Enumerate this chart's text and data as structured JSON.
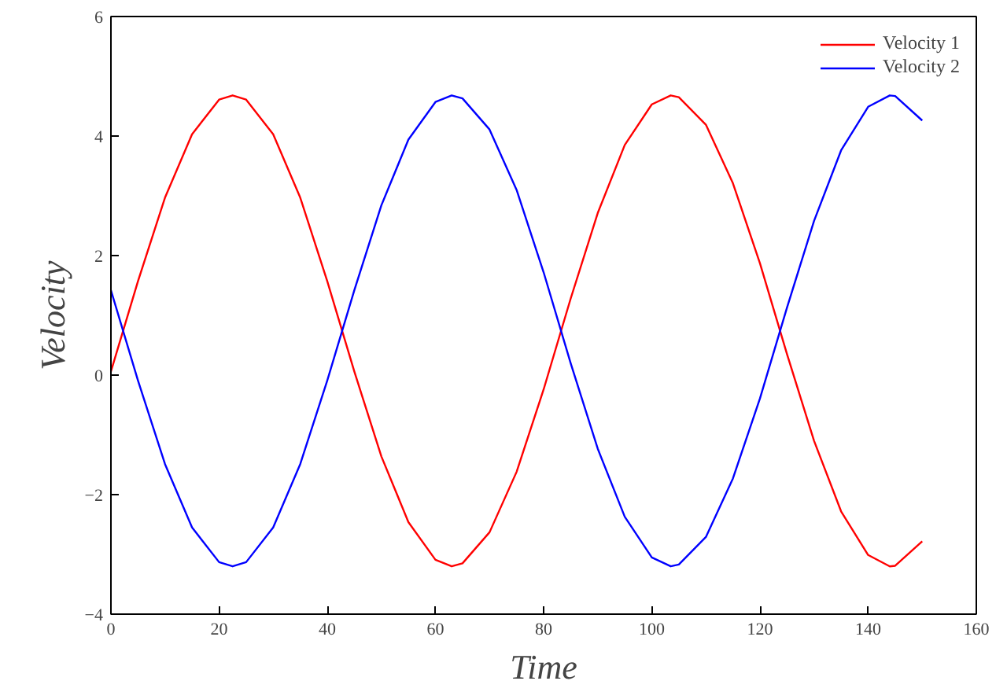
{
  "chart_data": {
    "type": "line",
    "xlabel": "Time",
    "ylabel": "Velocity",
    "xlim": [
      0,
      160
    ],
    "ylim": [
      -4,
      6
    ],
    "xticks": [
      0,
      20,
      40,
      60,
      80,
      100,
      120,
      140,
      160
    ],
    "yticks": [
      -4,
      -2,
      0,
      2,
      4,
      6
    ],
    "grid": false,
    "legend": "top right",
    "line_style": "solid",
    "marker": "none",
    "x": [
      0,
      5,
      10,
      15,
      20,
      22.5,
      25,
      30,
      35,
      40,
      45,
      50,
      55,
      60,
      63,
      65,
      70,
      75,
      80,
      85,
      90,
      95,
      100,
      103.5,
      105,
      110,
      115,
      120,
      125,
      130,
      135,
      140,
      144,
      145,
      150
    ],
    "series": [
      {
        "name": "Velocity 1",
        "color": "#ff0000",
        "values": [
          0.06,
          1.57,
          2.97,
          4.03,
          4.61,
          4.68,
          4.61,
          4.03,
          2.97,
          1.57,
          0.06,
          -1.36,
          -2.46,
          -3.09,
          -3.2,
          -3.15,
          -2.63,
          -1.62,
          -0.24,
          1.28,
          2.71,
          3.85,
          4.53,
          4.68,
          4.65,
          4.19,
          3.21,
          1.87,
          0.35,
          -1.1,
          -2.28,
          -3.01,
          -3.2,
          -3.19,
          -2.78
        ]
      },
      {
        "name": "Velocity 2",
        "color": "#0000ff",
        "values": [
          1.42,
          -0.09,
          -1.49,
          -2.55,
          -3.13,
          -3.2,
          -3.13,
          -2.55,
          -1.49,
          -0.09,
          1.42,
          2.84,
          3.94,
          4.57,
          4.68,
          4.63,
          4.11,
          3.1,
          1.72,
          0.2,
          -1.23,
          -2.37,
          -3.05,
          -3.2,
          -3.17,
          -2.71,
          -1.73,
          -0.39,
          1.13,
          2.58,
          3.76,
          4.49,
          4.68,
          4.67,
          4.26
        ]
      }
    ]
  }
}
